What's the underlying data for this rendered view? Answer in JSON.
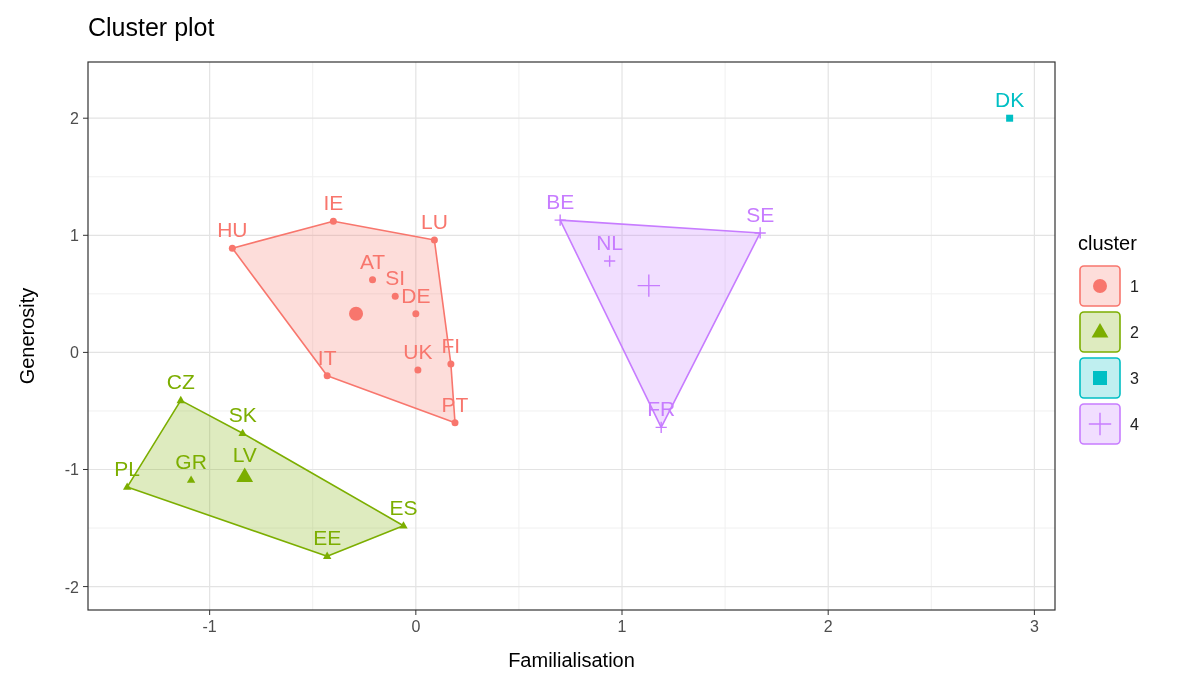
{
  "chart_data": {
    "type": "scatter",
    "title": "Cluster plot",
    "xlabel": "Familialisation",
    "ylabel": "Generosity",
    "legend_title": "cluster",
    "legend": "right",
    "grid": true,
    "xlim": [
      -1.59,
      3.1
    ],
    "xticks": [
      -1,
      0,
      1,
      2,
      3
    ],
    "ylim": [
      -2.2,
      2.48
    ],
    "yticks": [
      -2,
      -1,
      0,
      1,
      2
    ],
    "series": [
      {
        "name": "1",
        "color": "#f8766d",
        "marker": "circle",
        "x": [
          -0.89,
          -0.4,
          0.09,
          -0.21,
          -0.1,
          0.0,
          -0.43,
          0.01,
          0.17,
          0.19
        ],
        "values": [
          0.89,
          1.12,
          0.96,
          0.62,
          0.48,
          0.33,
          -0.2,
          -0.15,
          -0.1,
          -0.6
        ]
      },
      {
        "name": "2",
        "color": "#7cae00",
        "marker": "triangle",
        "x": [
          -1.14,
          -0.84,
          -1.4,
          -1.09,
          -0.83,
          -0.43,
          -0.06
        ],
        "values": [
          -0.41,
          -0.69,
          -1.15,
          -1.09,
          null,
          -1.74,
          -1.48
        ]
      },
      {
        "name": "3",
        "color": "#00bfc4",
        "marker": "square",
        "x": [
          2.88
        ],
        "values": [
          2.0
        ]
      },
      {
        "name": "4",
        "color": "#c77cff",
        "marker": "cross",
        "x": [
          0.7,
          1.67,
          0.94,
          1.19
        ],
        "values": [
          1.13,
          1.02,
          0.78,
          -0.64
        ]
      },
      {
        "color": "#f8766d",
        "marker": "circle",
        "x": [
          -0.29
        ],
        "values": [
          0.33
        ]
      },
      {
        "color": "#7cae00",
        "marker": "triangle",
        "x": [
          -0.83
        ],
        "values": [
          -1.06
        ]
      },
      {
        "color": "#c77cff",
        "marker": "cross",
        "x": [
          1.13
        ],
        "values": [
          0.57
        ]
      }
    ],
    "annotations": [
      {
        "text": "HU",
        "x": -0.89,
        "y": 0.89
      },
      {
        "text": "IE",
        "x": -0.4,
        "y": 1.12
      },
      {
        "text": "LU",
        "x": 0.09,
        "y": 0.96
      },
      {
        "text": "AT",
        "x": -0.21,
        "y": 0.62
      },
      {
        "text": "SI",
        "x": -0.1,
        "y": 0.48
      },
      {
        "text": "DE",
        "x": 0.0,
        "y": 0.33
      },
      {
        "text": "IT",
        "x": -0.43,
        "y": -0.2
      },
      {
        "text": "UK",
        "x": 0.01,
        "y": -0.15
      },
      {
        "text": "FI",
        "x": 0.17,
        "y": -0.1
      },
      {
        "text": "PT",
        "x": 0.19,
        "y": -0.6
      },
      {
        "text": "CZ",
        "x": -1.14,
        "y": -0.41
      },
      {
        "text": "SK",
        "x": -0.84,
        "y": -0.69
      },
      {
        "text": "PL",
        "x": -1.4,
        "y": -1.15
      },
      {
        "text": "GR",
        "x": -1.09,
        "y": -1.09
      },
      {
        "text": "LV",
        "x": -0.83,
        "y": -1.03
      },
      {
        "text": "EE",
        "x": -0.43,
        "y": -1.74
      },
      {
        "text": "ES",
        "x": -0.06,
        "y": -1.48
      },
      {
        "text": "DK",
        "x": 2.88,
        "y": 2.0
      },
      {
        "text": "BE",
        "x": 0.7,
        "y": 1.13
      },
      {
        "text": "SE",
        "x": 1.67,
        "y": 1.02
      },
      {
        "text": "NL",
        "x": 0.94,
        "y": 0.78
      },
      {
        "text": "FR",
        "x": 1.19,
        "y": -0.64
      }
    ]
  }
}
